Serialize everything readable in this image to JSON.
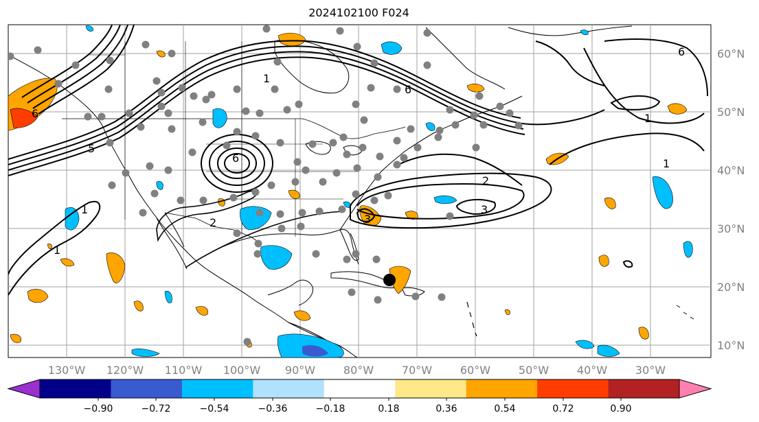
{
  "title": "2024102100 F024",
  "map": {
    "lon_labels": [
      "130°W",
      "120°W",
      "110°W",
      "100°W",
      "90°W",
      "80°W",
      "70°W",
      "60°W",
      "50°W",
      "40°W",
      "30°W"
    ],
    "lat_labels": [
      "60°N",
      "50°N",
      "40°N",
      "30°N",
      "20°N",
      "10°N"
    ],
    "contour_labels": [
      "6",
      "1",
      "6",
      "5",
      "6",
      "1",
      "1",
      "2",
      "3",
      "1",
      "2",
      "3",
      "6",
      "1"
    ]
  },
  "colorbar": {
    "ticks": [
      "−0.90",
      "−0.72",
      "−0.54",
      "−0.36",
      "−0.18",
      "0.18",
      "0.36",
      "0.54",
      "0.72",
      "0.90"
    ],
    "colors": [
      "#9a30d0",
      "#00008b",
      "#3a5bd0",
      "#00bfff",
      "#b0e2ff",
      "#ffffff",
      "#ffe88a",
      "#ffa500",
      "#ff3d00",
      "#b22222",
      "#ff80b0"
    ]
  },
  "legend_colors": {
    "positive_fill": "#ffa500",
    "negative_fill": "#00bfff",
    "station_dot": "#808080",
    "marker": "#000000"
  }
}
